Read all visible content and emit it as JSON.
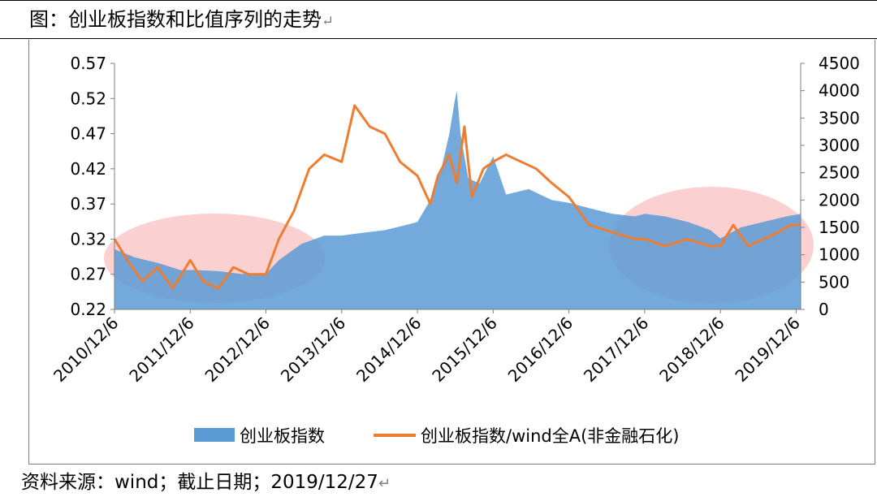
{
  "caption": {
    "title": "图：创业板指数和比值序列的走势",
    "mark": "↵"
  },
  "source": {
    "text": "资料来源：wind；截止日期；2019/12/27",
    "mark": "↵"
  },
  "colors": {
    "area": "#5b9bd5",
    "line": "#ed7d31",
    "highlight": "#f9b7b7"
  },
  "chart_data": {
    "type": "area",
    "x_ticks": [
      "2010/12/6",
      "2011/12/6",
      "2012/12/6",
      "2013/12/6",
      "2014/12/6",
      "2015/12/6",
      "2016/12/6",
      "2017/12/6",
      "2018/12/6",
      "2019/12/6"
    ],
    "x_range": [
      2010.93,
      2019.99
    ],
    "y_left": {
      "range": [
        0.22,
        0.57
      ],
      "ticks": [
        "0.22",
        "0.27",
        "0.32",
        "0.37",
        "0.42",
        "0.47",
        "0.52",
        "0.57"
      ]
    },
    "y_right": {
      "range": [
        0,
        4500
      ],
      "ticks": [
        "0",
        "500",
        "1000",
        "1500",
        "2000",
        "2500",
        "3000",
        "3500",
        "4000",
        "4500"
      ]
    },
    "series": [
      {
        "name": "创业板指数",
        "kind": "area",
        "axis": "right",
        "points": [
          [
            2010.93,
            1100
          ],
          [
            2011.2,
            950
          ],
          [
            2011.5,
            850
          ],
          [
            2011.8,
            720
          ],
          [
            2012.0,
            720
          ],
          [
            2012.3,
            700
          ],
          [
            2012.6,
            650
          ],
          [
            2012.93,
            650
          ],
          [
            2013.1,
            900
          ],
          [
            2013.4,
            1200
          ],
          [
            2013.7,
            1350
          ],
          [
            2013.93,
            1350
          ],
          [
            2014.2,
            1400
          ],
          [
            2014.5,
            1450
          ],
          [
            2014.8,
            1550
          ],
          [
            2014.93,
            1600
          ],
          [
            2015.1,
            2000
          ],
          [
            2015.25,
            2600
          ],
          [
            2015.35,
            3200
          ],
          [
            2015.42,
            3800
          ],
          [
            2015.45,
            4000
          ],
          [
            2015.5,
            3200
          ],
          [
            2015.6,
            2400
          ],
          [
            2015.75,
            2300
          ],
          [
            2015.93,
            2800
          ],
          [
            2016.1,
            2100
          ],
          [
            2016.4,
            2200
          ],
          [
            2016.7,
            2000
          ],
          [
            2016.93,
            1950
          ],
          [
            2017.2,
            1850
          ],
          [
            2017.5,
            1750
          ],
          [
            2017.8,
            1700
          ],
          [
            2017.93,
            1750
          ],
          [
            2018.2,
            1700
          ],
          [
            2018.5,
            1600
          ],
          [
            2018.8,
            1450
          ],
          [
            2018.93,
            1300
          ],
          [
            2019.2,
            1500
          ],
          [
            2019.5,
            1600
          ],
          [
            2019.8,
            1700
          ],
          [
            2019.99,
            1750
          ]
        ]
      },
      {
        "name": "创业板指数/wind全A(非金融石化)",
        "kind": "line",
        "axis": "left",
        "points": [
          [
            2010.93,
            0.32
          ],
          [
            2011.1,
            0.29
          ],
          [
            2011.3,
            0.26
          ],
          [
            2011.5,
            0.28
          ],
          [
            2011.7,
            0.25
          ],
          [
            2011.93,
            0.29
          ],
          [
            2012.1,
            0.26
          ],
          [
            2012.3,
            0.25
          ],
          [
            2012.5,
            0.28
          ],
          [
            2012.7,
            0.27
          ],
          [
            2012.93,
            0.27
          ],
          [
            2013.1,
            0.32
          ],
          [
            2013.3,
            0.36
          ],
          [
            2013.5,
            0.42
          ],
          [
            2013.7,
            0.44
          ],
          [
            2013.93,
            0.43
          ],
          [
            2014.1,
            0.51
          ],
          [
            2014.3,
            0.48
          ],
          [
            2014.5,
            0.47
          ],
          [
            2014.7,
            0.43
          ],
          [
            2014.93,
            0.41
          ],
          [
            2015.1,
            0.37
          ],
          [
            2015.2,
            0.41
          ],
          [
            2015.35,
            0.44
          ],
          [
            2015.45,
            0.4
          ],
          [
            2015.55,
            0.48
          ],
          [
            2015.65,
            0.38
          ],
          [
            2015.8,
            0.42
          ],
          [
            2015.93,
            0.43
          ],
          [
            2016.1,
            0.44
          ],
          [
            2016.3,
            0.43
          ],
          [
            2016.5,
            0.42
          ],
          [
            2016.7,
            0.4
          ],
          [
            2016.93,
            0.38
          ],
          [
            2017.2,
            0.34
          ],
          [
            2017.5,
            0.33
          ],
          [
            2017.8,
            0.32
          ],
          [
            2017.93,
            0.32
          ],
          [
            2018.2,
            0.31
          ],
          [
            2018.5,
            0.32
          ],
          [
            2018.8,
            0.31
          ],
          [
            2018.93,
            0.31
          ],
          [
            2019.1,
            0.34
          ],
          [
            2019.3,
            0.31
          ],
          [
            2019.5,
            0.32
          ],
          [
            2019.7,
            0.33
          ],
          [
            2019.85,
            0.34
          ],
          [
            2019.99,
            0.34
          ]
        ]
      }
    ],
    "legend": {
      "placement": "bottom"
    }
  }
}
